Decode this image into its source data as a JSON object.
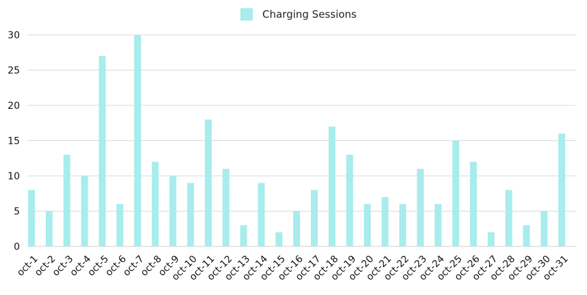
{
  "chart_data": {
    "type": "bar",
    "categories": [
      "oct-1",
      "oct-2",
      "oct-3",
      "oct-4",
      "oct-5",
      "oct-6",
      "oct-7",
      "oct-8",
      "oct-9",
      "oct-10",
      "oct-11",
      "oct-12",
      "oct-13",
      "oct-14",
      "oct-15",
      "oct-16",
      "oct-17",
      "oct-18",
      "oct-19",
      "oct-20",
      "oct-21",
      "oct-22",
      "oct-23",
      "oct-24",
      "oct-25",
      "oct-26",
      "oct-27",
      "oct-28",
      "oct-29",
      "oct-30",
      "oct-31"
    ],
    "series": [
      {
        "name": "Charging Sessions",
        "color": "#a8eced",
        "values": [
          8,
          5,
          13,
          10,
          27,
          6,
          30,
          12,
          10,
          9,
          18,
          11,
          3,
          9,
          2,
          5,
          8,
          17,
          13,
          6,
          7,
          6,
          11,
          6,
          15,
          12,
          2,
          8,
          3,
          5,
          16
        ]
      }
    ],
    "y_ticks": [
      "0",
      "5",
      "10",
      "15",
      "20",
      "25",
      "30"
    ],
    "ylim": [
      0,
      30
    ],
    "grid": true,
    "legend_position": "top-center"
  }
}
